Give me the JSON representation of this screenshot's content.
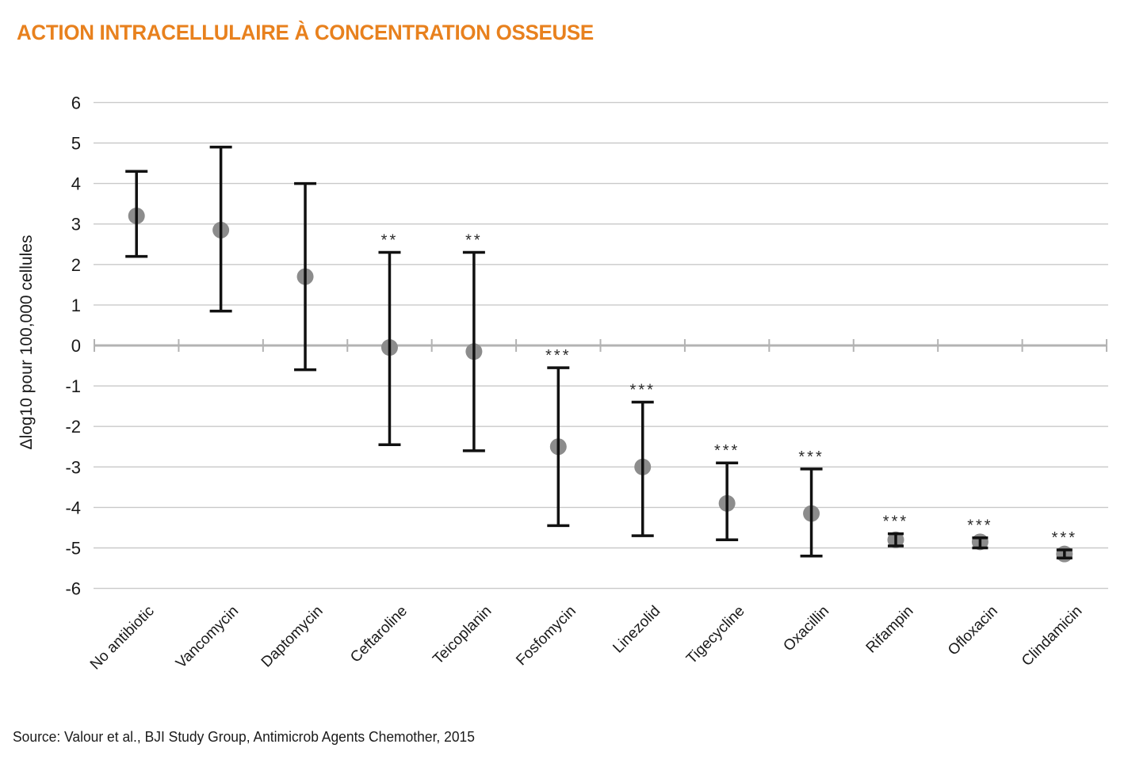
{
  "page": {
    "title": "ACTION INTRACELLULAIRE À CONCENTRATION OSSEUSE",
    "source": "Source: Valour et al., BJI Study Group, Antimicrob Agents Chemother, 2015"
  },
  "colors": {
    "title_orange": "#e8811e",
    "gridline": "#c9c9c9",
    "axis_line": "#b3b3b3",
    "error_bar": "#111111",
    "marker": "#8c8c8c",
    "text": "#1a1a1a"
  },
  "chart_data": {
    "type": "scatter",
    "subtype": "mean-with-error-bars",
    "title": "ACTION INTRACELLULAIRE À CONCENTRATION OSSEUSE",
    "xlabel": "",
    "ylabel": "Δlog10 pour 100,000 cellules",
    "ylim": [
      -6,
      6
    ],
    "ytick_step": 1,
    "yticks": [
      6,
      5,
      4,
      3,
      2,
      1,
      0,
      -1,
      -2,
      -3,
      -4,
      -5,
      -6
    ],
    "grid": true,
    "legend": "none",
    "categories": [
      "No antibiotic",
      "Vancomycin",
      "Daptomycin",
      "Ceftaroline",
      "Teicoplanin",
      "Fosfomycin",
      "Linezolid",
      "Tigecycline",
      "Oxacillin",
      "Rifampin",
      "Ofloxacin",
      "Clindamicin"
    ],
    "points": [
      {
        "label": "No antibiotic",
        "mean": 3.2,
        "lo": 2.2,
        "hi": 4.3,
        "sig": ""
      },
      {
        "label": "Vancomycin",
        "mean": 2.85,
        "lo": 0.85,
        "hi": 4.9,
        "sig": ""
      },
      {
        "label": "Daptomycin",
        "mean": 1.7,
        "lo": -0.6,
        "hi": 4.0,
        "sig": ""
      },
      {
        "label": "Ceftaroline",
        "mean": -0.05,
        "lo": -2.45,
        "hi": 2.3,
        "sig": "**"
      },
      {
        "label": "Teicoplanin",
        "mean": -0.15,
        "lo": -2.6,
        "hi": 2.3,
        "sig": "**"
      },
      {
        "label": "Fosfomycin",
        "mean": -2.5,
        "lo": -4.45,
        "hi": -0.55,
        "sig": "***"
      },
      {
        "label": "Linezolid",
        "mean": -3.0,
        "lo": -4.7,
        "hi": -1.4,
        "sig": "***"
      },
      {
        "label": "Tigecycline",
        "mean": -3.9,
        "lo": -4.8,
        "hi": -2.9,
        "sig": "***"
      },
      {
        "label": "Oxacillin",
        "mean": -4.15,
        "lo": -5.2,
        "hi": -3.05,
        "sig": "***"
      },
      {
        "label": "Rifampin",
        "mean": -4.8,
        "lo": -4.95,
        "hi": -4.65,
        "sig": "***"
      },
      {
        "label": "Ofloxacin",
        "mean": -4.85,
        "lo": -5.0,
        "hi": -4.75,
        "sig": "***"
      },
      {
        "label": "Clindamicin",
        "mean": -5.15,
        "lo": -5.25,
        "hi": -5.05,
        "sig": "***"
      }
    ],
    "source": "Source: Valour et al., BJI Study Group, Antimicrob Agents Chemother, 2015"
  }
}
